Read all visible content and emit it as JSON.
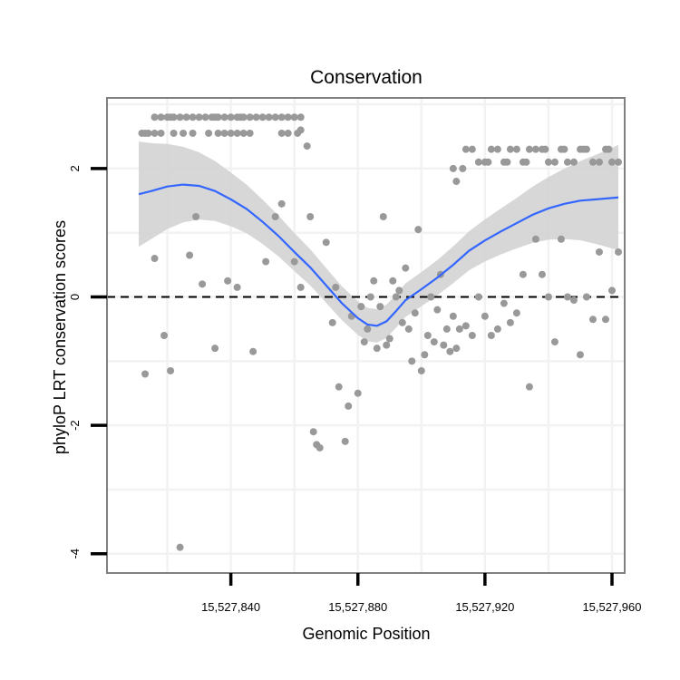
{
  "chart_data": {
    "type": "scatter",
    "title": "Conservation",
    "xlabel": "Genomic Position",
    "ylabel": "phyloP LRT conservation scores",
    "xlim": [
      15527801,
      15527964
    ],
    "ylim": [
      -4.3,
      3.1
    ],
    "x_ticks": [
      15527840,
      15527880,
      15527920,
      15527960
    ],
    "x_tick_labels": [
      "15,527,840",
      "15,527,880",
      "15,527,920",
      "15,527,960"
    ],
    "y_ticks": [
      -4,
      -2,
      0,
      2
    ],
    "y_tick_labels": [
      "-4",
      "-2",
      "0",
      "2"
    ],
    "grid": true,
    "reference_line": {
      "y": 0,
      "style": "dashed"
    },
    "colors": {
      "points": "#999999",
      "smooth_line": "#3366ff",
      "confidence_band": "#d3d3d3",
      "panel_border": "#808080"
    },
    "points": {
      "x": [
        15527812,
        15527813,
        15527814,
        15527816,
        15527818,
        15527820,
        15527821,
        15527822,
        15527824,
        15527826,
        15527828,
        15527830,
        15527832,
        15527834,
        15527835,
        15527836,
        15527838,
        15527840,
        15527842,
        15527843,
        15527844,
        15527846,
        15527848,
        15527850,
        15527852,
        15527854,
        15527856,
        15527858,
        15527860,
        15527862,
        15527816,
        15527818,
        15527822,
        15527825,
        15527828,
        15527833,
        15527836,
        15527838,
        15527840,
        15527842,
        15527844,
        15527846,
        15527856,
        15527858,
        15527861,
        15527862,
        15527864,
        15527813,
        15527816,
        15527819,
        15527821,
        15527824,
        15527827,
        15527829,
        15527831,
        15527835,
        15527839,
        15527842,
        15527847,
        15527851,
        15527854,
        15527856,
        15527860,
        15527862,
        15527865,
        15527866,
        15527867,
        15527868,
        15527870,
        15527872,
        15527873,
        15527874,
        15527876,
        15527877,
        15527878,
        15527880,
        15527881,
        15527882,
        15527883,
        15527884,
        15527885,
        15527886,
        15527887,
        15527888,
        15527889,
        15527890,
        15527891,
        15527892,
        15527893,
        15527894,
        15527895,
        15527896,
        15527897,
        15527898,
        15527899,
        15527900,
        15527901,
        15527902,
        15527903,
        15527904,
        15527905,
        15527906,
        15527907,
        15527908,
        15527909,
        15527910,
        15527911,
        15527912,
        15527914,
        15527916,
        15527918,
        15527920,
        15527922,
        15527924,
        15527926,
        15527928,
        15527930,
        15527932,
        15527934,
        15527936,
        15527938,
        15527940,
        15527942,
        15527944,
        15527946,
        15527948,
        15527950,
        15527952,
        15527954,
        15527956,
        15527958,
        15527960,
        15527962,
        15527910,
        15527911,
        15527913,
        15527914,
        15527916,
        15527918,
        15527920,
        15527921,
        15527922,
        15527924,
        15527926,
        15527927,
        15527928,
        15527930,
        15527932,
        15527933,
        15527934,
        15527936,
        15527938,
        15527939,
        15527940,
        15527942,
        15527944,
        15527945,
        15527946,
        15527948,
        15527950,
        15527951,
        15527952,
        15527954,
        15527956,
        15527958,
        15527959,
        15527960,
        15527962
      ],
      "y": [
        2.55,
        2.55,
        2.55,
        2.8,
        2.8,
        2.8,
        2.8,
        2.8,
        2.8,
        2.8,
        2.8,
        2.8,
        2.8,
        2.8,
        2.8,
        2.8,
        2.8,
        2.8,
        2.8,
        2.8,
        2.8,
        2.8,
        2.8,
        2.8,
        2.8,
        2.8,
        2.8,
        2.8,
        2.8,
        2.8,
        2.55,
        2.55,
        2.55,
        2.55,
        2.55,
        2.55,
        2.55,
        2.55,
        2.55,
        2.55,
        2.55,
        2.55,
        2.55,
        2.55,
        2.55,
        2.6,
        2.35,
        -1.2,
        0.6,
        -0.6,
        -1.15,
        -3.9,
        0.65,
        1.25,
        0.2,
        -0.8,
        0.25,
        0.15,
        -0.85,
        0.55,
        1.25,
        1.45,
        0.55,
        0.15,
        1.25,
        -2.1,
        -2.3,
        -2.35,
        0.85,
        -0.4,
        0.15,
        -1.4,
        -2.25,
        -1.7,
        -0.3,
        -1.5,
        -0.15,
        -0.7,
        -0.5,
        0.0,
        0.25,
        -0.8,
        -0.15,
        1.25,
        -0.75,
        -0.65,
        0.25,
        0.0,
        0.1,
        -0.4,
        0.45,
        -0.5,
        -1.0,
        -0.25,
        1.05,
        -1.15,
        -0.9,
        -0.6,
        0.0,
        -0.7,
        -0.2,
        0.35,
        -0.75,
        -0.5,
        -0.85,
        -0.3,
        -0.8,
        -0.5,
        -0.45,
        -0.6,
        0.0,
        -0.3,
        -0.6,
        -0.5,
        -0.1,
        -0.4,
        -0.25,
        0.35,
        -1.4,
        0.9,
        0.35,
        0.0,
        -0.7,
        0.9,
        0.0,
        -0.05,
        -0.9,
        0.0,
        -0.35,
        0.7,
        -0.35,
        0.1,
        0.7,
        2.0,
        1.8,
        2.0,
        2.3,
        2.3,
        2.1,
        2.1,
        2.1,
        2.3,
        2.3,
        2.1,
        2.1,
        2.3,
        2.3,
        2.1,
        2.1,
        2.3,
        2.3,
        2.3,
        2.3,
        2.1,
        2.1,
        2.3,
        2.3,
        2.1,
        2.1,
        2.3,
        2.3,
        2.3,
        2.1,
        2.1,
        2.3,
        2.3,
        2.1,
        2.1
      ]
    },
    "smooth": {
      "x": [
        15527811,
        15527815,
        15527820,
        15527825,
        15527830,
        15527835,
        15527840,
        15527845,
        15527850,
        15527855,
        15527860,
        15527865,
        15527870,
        15527875,
        15527880,
        15527883,
        15527886,
        15527889,
        15527892,
        15527895,
        15527900,
        15527905,
        15527910,
        15527915,
        15527920,
        15527925,
        15527930,
        15527935,
        15527940,
        15527945,
        15527950,
        15527955,
        15527962
      ],
      "y": [
        1.6,
        1.65,
        1.72,
        1.75,
        1.73,
        1.65,
        1.52,
        1.37,
        1.17,
        0.95,
        0.7,
        0.46,
        0.18,
        -0.1,
        -0.33,
        -0.43,
        -0.45,
        -0.38,
        -0.22,
        -0.05,
        0.12,
        0.3,
        0.5,
        0.72,
        0.88,
        1.02,
        1.15,
        1.28,
        1.38,
        1.45,
        1.5,
        1.52,
        1.55
      ]
    }
  }
}
